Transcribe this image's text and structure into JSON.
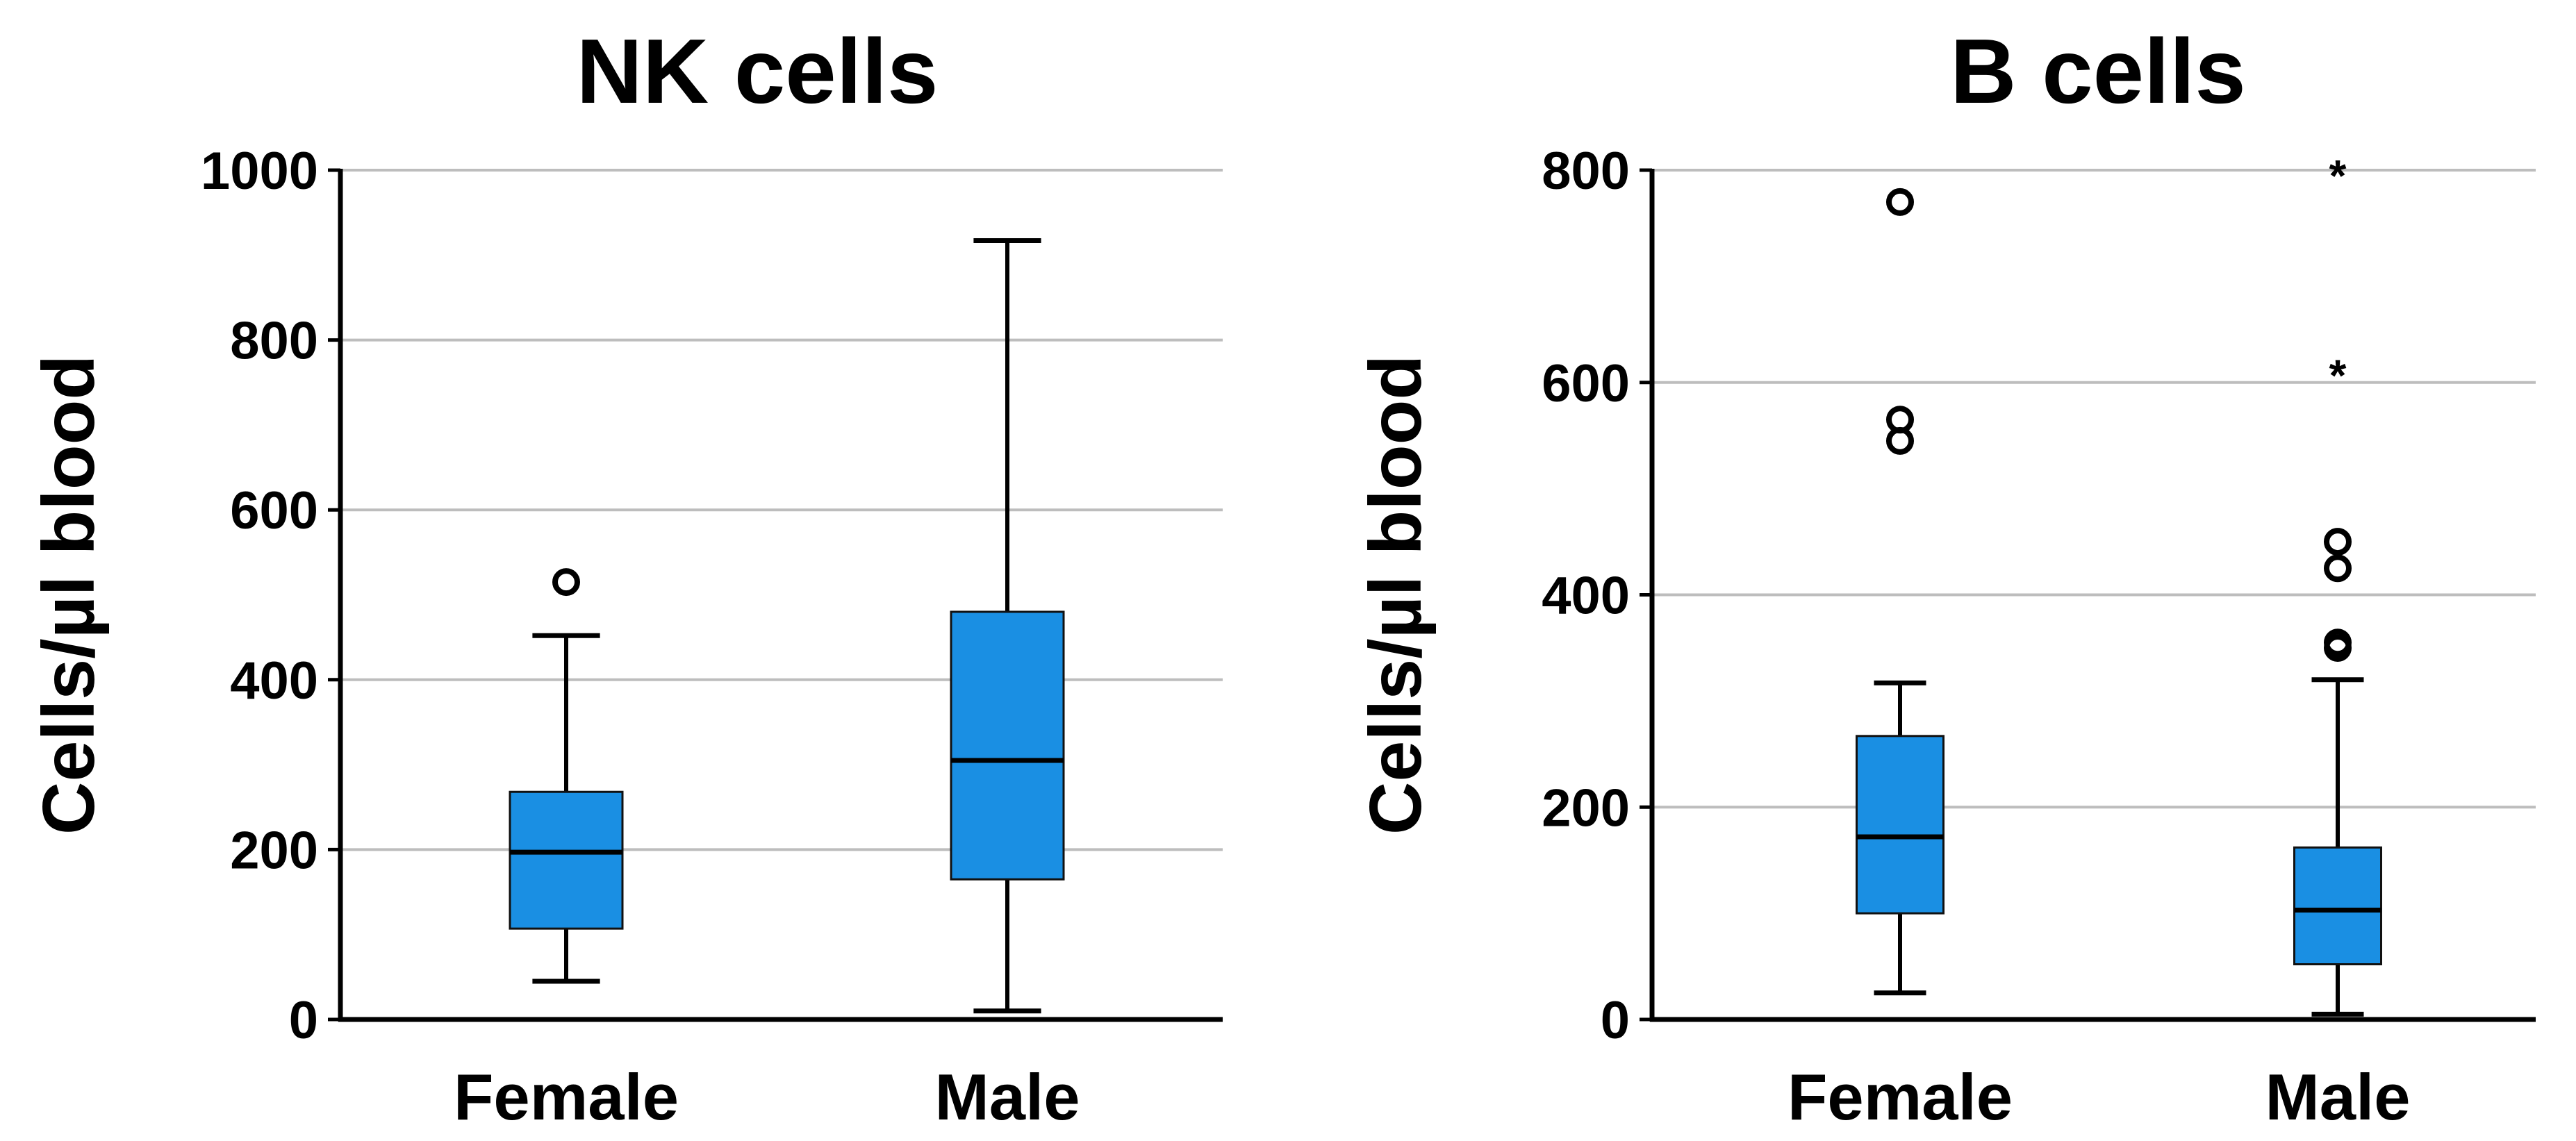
{
  "chart_data": [
    {
      "type": "boxplot",
      "title": "NK cells",
      "xlabel": "",
      "ylabel": "Cells/µl blood",
      "ylim": [
        0,
        1000
      ],
      "yticks": [
        0,
        200,
        400,
        600,
        800,
        1000
      ],
      "categories": [
        "Female",
        "Male"
      ],
      "boxes": [
        {
          "category": "Female",
          "whisker_low": 45,
          "q1": 107,
          "median": 197,
          "q3": 268,
          "whisker_high": 452,
          "outliers": [
            515
          ],
          "extremes": []
        },
        {
          "category": "Male",
          "whisker_low": 10,
          "q1": 165,
          "median": 305,
          "q3": 480,
          "whisker_high": 917,
          "outliers": [],
          "extremes": []
        }
      ]
    },
    {
      "type": "boxplot",
      "title": "B cells",
      "xlabel": "",
      "ylabel": "Cells/µl blood",
      "ylim": [
        0,
        800
      ],
      "yticks": [
        0,
        200,
        400,
        600,
        800
      ],
      "categories": [
        "Female",
        "Male"
      ],
      "boxes": [
        {
          "category": "Female",
          "whisker_low": 25,
          "q1": 100,
          "median": 172,
          "q3": 267,
          "whisker_high": 317,
          "outliers": [
            545,
            565,
            770
          ],
          "extremes": []
        },
        {
          "category": "Male",
          "whisker_low": 5,
          "q1": 52,
          "median": 103,
          "q3": 162,
          "whisker_high": 320,
          "outliers": [
            350,
            355,
            425,
            450
          ],
          "extremes": [
            612,
            800
          ]
        }
      ]
    }
  ],
  "colors": {
    "box_fill": "#1a8fe3",
    "grid": "#bdbdbd",
    "axis": "#000000"
  }
}
